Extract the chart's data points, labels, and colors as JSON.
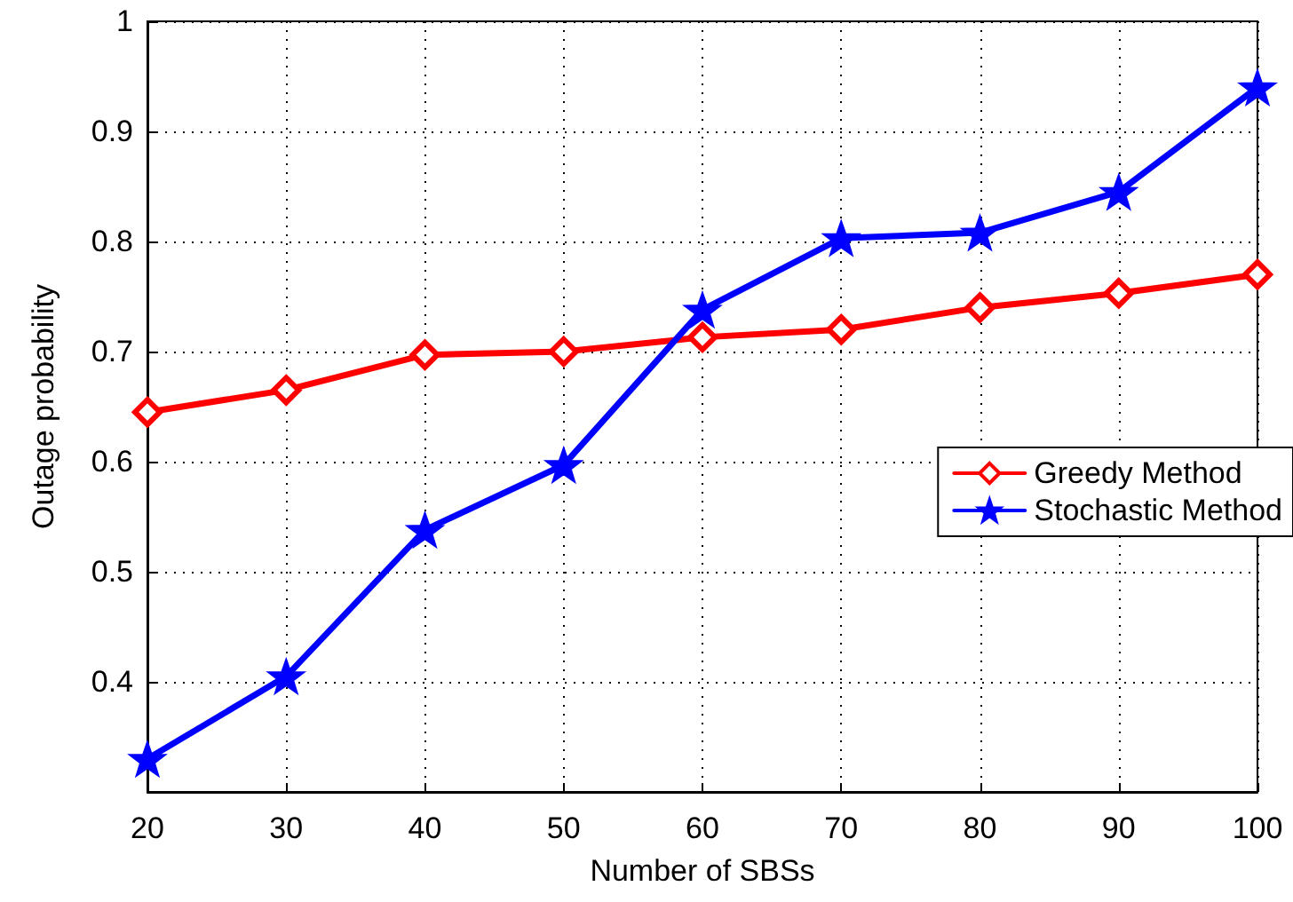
{
  "chart_data": {
    "type": "line",
    "xlabel": "Number of SBSs",
    "ylabel": "Outage probability",
    "x": [
      20,
      30,
      40,
      50,
      60,
      70,
      80,
      90,
      100
    ],
    "series": [
      {
        "name": "Greedy Method",
        "color": "#ff0000",
        "marker": "diamond",
        "values": [
          0.645,
          0.665,
          0.697,
          0.7,
          0.713,
          0.72,
          0.74,
          0.753,
          0.77
        ]
      },
      {
        "name": "Stochastic Method",
        "color": "#0000ff",
        "marker": "star",
        "values": [
          0.33,
          0.405,
          0.538,
          0.597,
          0.738,
          0.803,
          0.808,
          0.845,
          0.94
        ]
      }
    ],
    "xlim": [
      20,
      100
    ],
    "xticks": [
      20,
      30,
      40,
      50,
      60,
      70,
      80,
      90,
      100
    ],
    "ylim": [
      0.3,
      1
    ],
    "yticks": [
      0.4,
      0.5,
      0.6,
      0.7,
      0.8,
      0.9,
      1
    ],
    "grid": true,
    "legend": "right",
    "line_style": "solid"
  }
}
